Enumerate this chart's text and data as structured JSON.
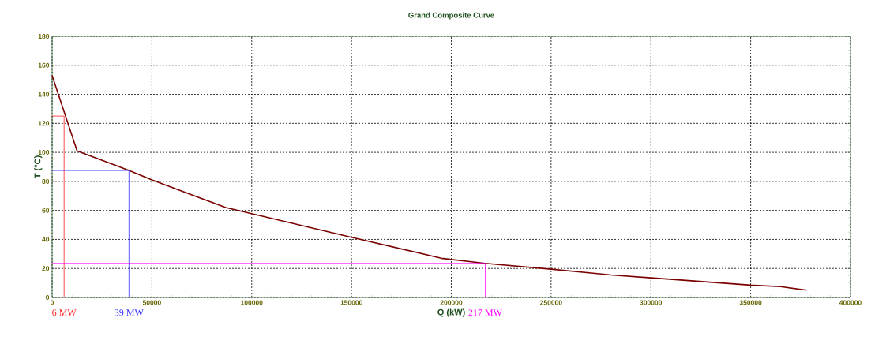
{
  "chart_data": {
    "type": "line",
    "title": "Grand Composite Curve",
    "xlabel": "Q (kW)",
    "ylabel": "T (°C)",
    "xlim": [
      0,
      400000
    ],
    "ylim": [
      0,
      180
    ],
    "xticks": [
      0,
      50000,
      100000,
      150000,
      200000,
      250000,
      300000,
      350000,
      400000
    ],
    "yticks": [
      0,
      20,
      40,
      60,
      80,
      100,
      120,
      140,
      160,
      180
    ],
    "grid": true,
    "line_style": "solid",
    "series": [
      {
        "color": "#7b0000",
        "x": [
          0,
          12500,
          38500,
          50000,
          87000,
          150000,
          195000,
          217000,
          250000,
          280000,
          300000,
          350000,
          365000,
          378000
        ],
        "values": [
          153,
          101,
          87.5,
          81,
          62,
          41.5,
          27,
          23.5,
          19.5,
          15.5,
          13.5,
          8.5,
          7.5,
          5
        ]
      },
      {
        "color": "#ff2020",
        "x": [
          0,
          6000,
          6000
        ],
        "values": [
          125,
          125,
          0
        ]
      },
      {
        "color": "#3030ff",
        "x": [
          0,
          38500,
          38500
        ],
        "values": [
          87.5,
          87.5,
          0
        ]
      },
      {
        "color": "#ff00ff",
        "x": [
          0,
          217000,
          217000
        ],
        "values": [
          23.5,
          23.5,
          0
        ]
      }
    ],
    "annotations": [
      "6 MW",
      "39 MW",
      "217 MW"
    ]
  }
}
